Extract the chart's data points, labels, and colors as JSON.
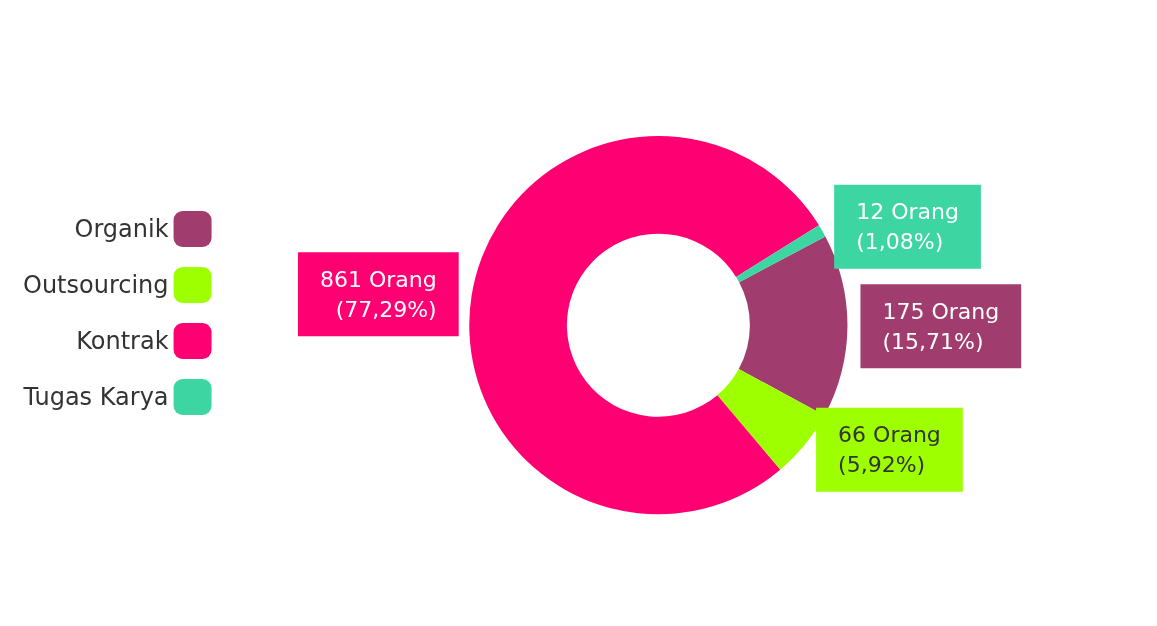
{
  "chart_data": {
    "type": "donut",
    "categories": [
      "Organik",
      "Outsourcing",
      "Kontrak",
      "Tugas Karya"
    ],
    "values": [
      175,
      66,
      861,
      12
    ],
    "colors": [
      "#a03c6e",
      "#9eff00",
      "#ff0072",
      "#3dd6a3"
    ],
    "value_labels": [
      "175 Orang\n(15,71%)",
      "66 Orang\n(5,92%)",
      "861 Orang\n(77,29%)",
      "12 Orang\n(1,08%)"
    ],
    "legend": "left"
  }
}
